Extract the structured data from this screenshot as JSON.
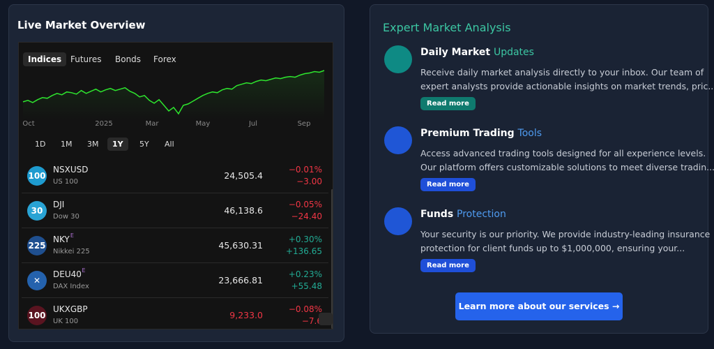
{
  "left_panel": {
    "title": "Live Market Overview",
    "tabs": [
      "Indices",
      "Futures",
      "Bonds",
      "Forex"
    ],
    "chart": {
      "type": "line",
      "color": "#2ee62e",
      "x_labels": [
        "Oct",
        "2025",
        "Mar",
        "May",
        "Jul",
        "Sep"
      ],
      "values": [
        20100,
        20300,
        20000,
        20400,
        20700,
        20600,
        21000,
        21300,
        21100,
        21500,
        21400,
        21200,
        21700,
        21300,
        21600,
        21900,
        21500,
        21800,
        22000,
        21700,
        21900,
        22100,
        21600,
        21300,
        20800,
        21000,
        20300,
        19900,
        20400,
        19600,
        18800,
        19300,
        18400,
        19600,
        19800,
        20200,
        20600,
        21000,
        21300,
        21500,
        21400,
        21800,
        22000,
        21900,
        22400,
        22600,
        22800,
        22700,
        23000,
        23200,
        23100,
        23300,
        23500,
        23400,
        23600,
        23700,
        23600,
        23900,
        24100,
        24200,
        24400,
        24300,
        24550
      ]
    },
    "ranges": [
      "1D",
      "1M",
      "3M",
      "1Y",
      "5Y",
      "All"
    ],
    "rows": [
      {
        "icon": "100",
        "icon_color": "#1e9bcf",
        "symbol": "NSXUSD",
        "name": "US 100",
        "price": "24,505.4",
        "price_color": "#e8e8e8",
        "change_pct": "−0.01%",
        "change": "−3.00"
      },
      {
        "icon": "30",
        "icon_color": "#29a3d4",
        "symbol": "DJI",
        "name": "Dow 30",
        "price": "46,138.6",
        "price_color": "#e8e8e8",
        "change_pct": "−0.05%",
        "change": "−24.40"
      },
      {
        "icon": "225",
        "icon_color": "#1f4f8f",
        "symbol": "NKY",
        "flag": "E",
        "name": "Nikkei 225",
        "price": "45,630.31",
        "price_color": "#e8e8e8",
        "change_pct": "+0.30%",
        "change": "+136.65"
      },
      {
        "icon": "✕",
        "icon_color": "#2462ad",
        "symbol": "DEU40",
        "flag": "E",
        "name": "DAX Index",
        "price": "23,666.81",
        "price_color": "#e8e8e8",
        "change_pct": "+0.23%",
        "change": "+55.48"
      },
      {
        "icon": "100",
        "icon_color": "#5a1420",
        "symbol": "UKXGBP",
        "name": "UK 100",
        "price": "9,233.0",
        "price_color": "#f23645",
        "change_pct": "−0.08%",
        "change": "−7.6"
      }
    ]
  },
  "right_panel": {
    "title": "Expert Market Analysis",
    "items": [
      {
        "heading": "Daily Market ",
        "heading_accent": "Updates",
        "accent_color": "#3cc7a3",
        "icon_color": "#0e8a84",
        "lines": [
          "Receive daily market analysis directly to your inbox. Our team of",
          "expert analysts provide actionable insights on market trends, pric..."
        ],
        "button": "Read more",
        "button_color": "#0f7a6e"
      },
      {
        "heading": "Premium Trading ",
        "heading_accent": "Tools",
        "accent_color": "#4f9bf0",
        "icon_color": "#1f56d6",
        "lines": [
          "Access advanced trading tools designed for all experience levels.",
          "Our platform offers customizable solutions to meet diverse tradin..."
        ],
        "button": "Read more",
        "button_color": "#1f4fd8"
      },
      {
        "heading": "Funds ",
        "heading_accent": "Protection",
        "accent_color": "#4f9bf0",
        "icon_color": "#1f56d6",
        "lines": [
          "Your security is our priority. We provide industry-leading insurance",
          "protection for client funds up to $1,000,000, ensuring your..."
        ],
        "button": "Read more",
        "button_color": "#1f4fd8"
      }
    ],
    "cta": "Learn more about our services →"
  }
}
